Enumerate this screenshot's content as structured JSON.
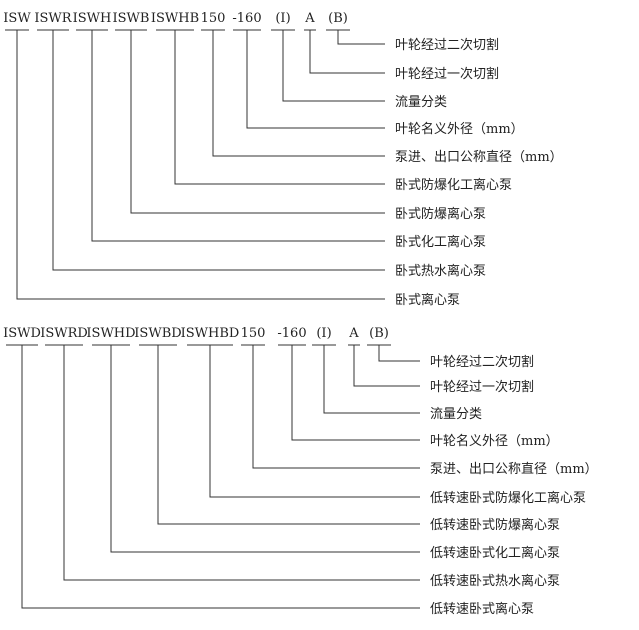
{
  "diagrams": [
    {
      "codes": [
        "ISW",
        "ISWR",
        "ISWH",
        "ISWB",
        "ISWHB",
        "150",
        "-160",
        "(I)",
        "A",
        "(B)"
      ],
      "labels": [
        "卧式离心泵",
        "卧式热水离心泵",
        "卧式化工离心泵",
        "卧式防爆离心泵",
        "卧式防爆化工离心泵",
        "泵进、出口公称直径（mm）",
        "叶轮名义外径（mm）",
        "流量分类",
        "叶轮经过一次切割",
        "叶轮经过二次切割"
      ]
    },
    {
      "codes": [
        "ISWD",
        "ISWRD",
        "ISWHD",
        "ISWBD",
        "ISWHBD",
        "150",
        "-160",
        "(I)",
        "A",
        "(B)"
      ],
      "labels": [
        "低转速卧式离心泵",
        "低转速卧式热水离心泵",
        "低转速卧式化工离心泵",
        "低转速卧式防爆离心泵",
        "低转速卧式防爆化工离心泵",
        "泵进、出口公称直径（mm）",
        "叶轮名义外径（mm）",
        "流量分类",
        "叶轮经过一次切割",
        "叶轮经过二次切割"
      ]
    }
  ],
  "colors": {
    "line": "#333333",
    "text": "#222222"
  }
}
